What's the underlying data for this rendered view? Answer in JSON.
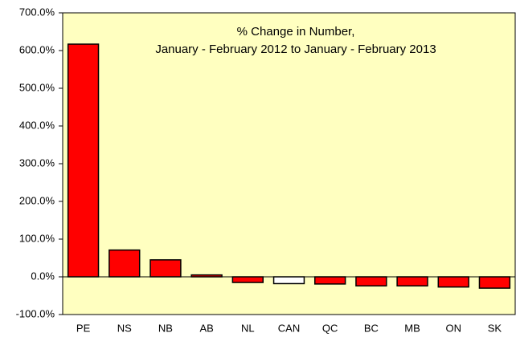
{
  "chart_data": {
    "type": "bar",
    "title": "% Change in Number,",
    "subtitle": "January - February 2012 to January - February 2013",
    "categories": [
      "PE",
      "NS",
      "NB",
      "AB",
      "NL",
      "CAN",
      "QC",
      "BC",
      "MB",
      "ON",
      "SK"
    ],
    "values": [
      617,
      71,
      45,
      5,
      -15,
      -18,
      -19,
      -24,
      -24,
      -27,
      -30
    ],
    "colors": [
      "#ff0000",
      "#ff0000",
      "#ff0000",
      "#ff0000",
      "#ff0000",
      "#ffffff",
      "#ff0000",
      "#ff0000",
      "#ff0000",
      "#ff0000",
      "#ff0000"
    ],
    "ylim": [
      -100,
      700
    ],
    "yticks": [
      {
        "value": -100,
        "label": "-100.0%"
      },
      {
        "value": 0,
        "label": "0.0%"
      },
      {
        "value": 100,
        "label": "100.0%"
      },
      {
        "value": 200,
        "label": "200.0%"
      },
      {
        "value": 300,
        "label": "300.0%"
      },
      {
        "value": 400,
        "label": "400.0%"
      },
      {
        "value": 500,
        "label": "500.0%"
      },
      {
        "value": 600,
        "label": "600.0%"
      },
      {
        "value": 700,
        "label": "700.0%"
      }
    ],
    "plot_background": "#ffffc0"
  }
}
